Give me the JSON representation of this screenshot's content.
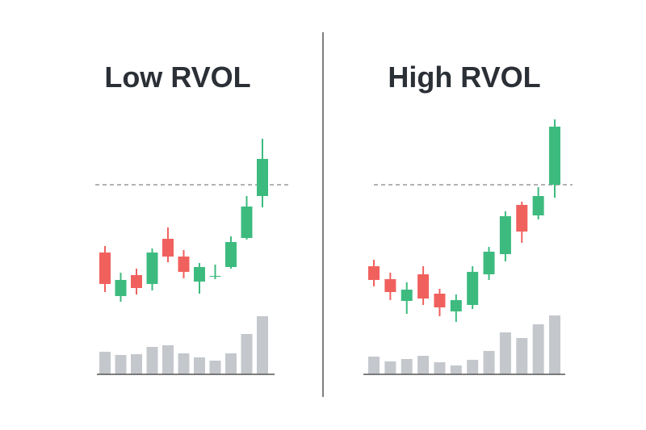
{
  "chart_data": [
    {
      "type": "candlestick",
      "title": "Low RVOL",
      "open": [
        87,
        33,
        59,
        48,
        104,
        82,
        51,
        57,
        69,
        105,
        157
      ],
      "high": [
        95,
        62,
        67,
        92,
        118,
        90,
        74,
        72,
        107,
        157,
        228
      ],
      "low": [
        38,
        26,
        35,
        40,
        75,
        55,
        36,
        54,
        67,
        103,
        143
      ],
      "close": [
        48,
        53,
        43,
        87,
        82,
        63,
        69,
        58,
        100,
        144,
        203
      ],
      "volume": [
        28,
        24,
        25,
        34,
        36,
        26,
        21,
        17,
        26,
        50,
        72
      ],
      "threshold": 171,
      "ylim": [
        0,
        300
      ],
      "volume_lim": [
        0,
        80
      ],
      "up_color": "#3dbb7f",
      "down_color": "#f0615e",
      "volume_color": "#c4c8cd"
    },
    {
      "type": "candlestick",
      "title": "High RVOL",
      "open": [
        70,
        54,
        27,
        60,
        36,
        14,
        22,
        60,
        85,
        146,
        133,
        171
      ],
      "high": [
        78,
        62,
        50,
        70,
        42,
        35,
        70,
        94,
        138,
        150,
        168,
        252
      ],
      "low": [
        45,
        28,
        11,
        22,
        8,
        1,
        17,
        53,
        76,
        99,
        128,
        155
      ],
      "close": [
        53,
        38,
        41,
        30,
        19,
        28,
        63,
        88,
        132,
        113,
        157,
        243
      ],
      "volume": [
        22,
        16,
        19,
        23,
        15,
        11,
        18,
        29,
        52,
        45,
        62,
        73
      ],
      "threshold": 171,
      "ylim": [
        0,
        300
      ],
      "volume_lim": [
        0,
        80
      ],
      "up_color": "#3dbb7f",
      "down_color": "#f0615e",
      "volume_color": "#c4c8cd"
    }
  ]
}
